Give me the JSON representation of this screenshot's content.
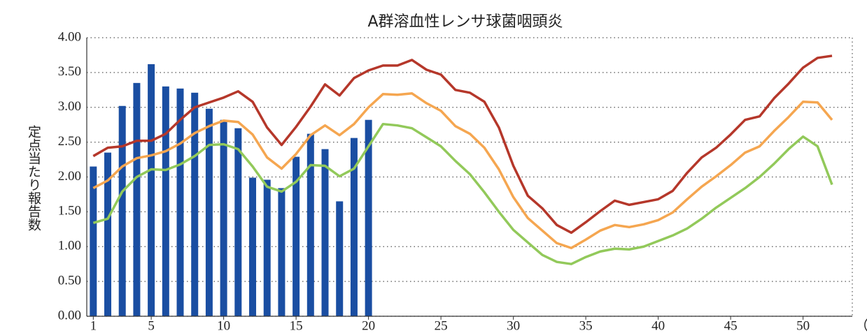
{
  "chart_data": {
    "type": "bar",
    "title": "A群溶血性レンサ球菌咽頭炎",
    "y_label": "定点当たり報告数",
    "x_label": "（週）",
    "x": [
      1,
      2,
      3,
      4,
      5,
      6,
      7,
      8,
      9,
      10,
      11,
      12,
      13,
      14,
      15,
      16,
      17,
      18,
      19,
      20,
      21,
      22,
      23,
      24,
      25,
      26,
      27,
      28,
      29,
      30,
      31,
      32,
      33,
      34,
      35,
      36,
      37,
      38,
      39,
      40,
      41,
      42,
      43,
      44,
      45,
      46,
      47,
      48,
      49,
      50,
      51,
      52
    ],
    "xlim": [
      0.55,
      53.4
    ],
    "xticks": [
      1,
      5,
      10,
      15,
      20,
      25,
      30,
      35,
      40,
      45,
      50
    ],
    "ylim": [
      0,
      4
    ],
    "yticks": [
      {
        "value": 0,
        "label": "0.00"
      },
      {
        "value": 0.5,
        "label": "0.50"
      },
      {
        "value": 1,
        "label": "1.00"
      },
      {
        "value": 1.5,
        "label": "1.50"
      },
      {
        "value": 2,
        "label": "2.00"
      },
      {
        "value": 2.5,
        "label": "2.50"
      },
      {
        "value": 3,
        "label": "3.00"
      },
      {
        "value": 3.5,
        "label": "3.50"
      },
      {
        "value": 4,
        "label": "4.00"
      }
    ],
    "grid": true,
    "series": [
      {
        "type": "bar",
        "color": "#1a4ea2",
        "values": [
          2.15,
          2.35,
          3.02,
          3.35,
          3.62,
          3.3,
          3.27,
          3.21,
          2.98,
          2.82,
          2.7,
          1.99,
          1.96,
          1.84,
          2.29,
          2.62,
          2.4,
          1.65,
          2.56,
          2.82,
          null,
          null,
          null,
          null,
          null,
          null,
          null,
          null,
          null,
          null,
          null,
          null,
          null,
          null,
          null,
          null,
          null,
          null,
          null,
          null,
          null,
          null,
          null,
          null,
          null,
          null,
          null,
          null,
          null,
          null,
          null,
          null
        ]
      },
      {
        "type": "line",
        "color": "#b5372a",
        "values": [
          2.3,
          2.42,
          2.44,
          2.52,
          2.52,
          2.62,
          2.82,
          3.0,
          3.07,
          3.14,
          3.23,
          3.08,
          2.71,
          2.46,
          2.72,
          3.01,
          3.33,
          3.17,
          3.42,
          3.53,
          3.6,
          3.6,
          3.68,
          3.54,
          3.47,
          3.25,
          3.21,
          3.08,
          2.71,
          2.16,
          1.73,
          1.55,
          1.31,
          1.2,
          1.35,
          1.51,
          1.66,
          1.6,
          1.64,
          1.68,
          1.8,
          2.06,
          2.28,
          2.42,
          2.61,
          2.82,
          2.87,
          3.13,
          3.34,
          3.57,
          3.71,
          3.74
        ]
      },
      {
        "type": "line",
        "color": "#f5a650",
        "values": [
          1.84,
          1.95,
          2.15,
          2.27,
          2.31,
          2.37,
          2.48,
          2.63,
          2.73,
          2.81,
          2.79,
          2.61,
          2.28,
          2.12,
          2.33,
          2.6,
          2.74,
          2.6,
          2.76,
          3.0,
          3.19,
          3.18,
          3.2,
          3.06,
          2.95,
          2.73,
          2.62,
          2.42,
          2.11,
          1.71,
          1.41,
          1.23,
          1.05,
          0.98,
          1.1,
          1.23,
          1.31,
          1.28,
          1.32,
          1.38,
          1.49,
          1.68,
          1.86,
          2.01,
          2.17,
          2.35,
          2.44,
          2.66,
          2.86,
          3.08,
          3.07,
          2.82
        ]
      },
      {
        "type": "line",
        "color": "#92c95a",
        "values": [
          1.34,
          1.4,
          1.79,
          2.0,
          2.11,
          2.1,
          2.18,
          2.3,
          2.46,
          2.47,
          2.4,
          2.15,
          1.86,
          1.79,
          1.93,
          2.17,
          2.16,
          2.01,
          2.12,
          2.44,
          2.76,
          2.74,
          2.7,
          2.57,
          2.44,
          2.23,
          2.04,
          1.78,
          1.5,
          1.24,
          1.06,
          0.88,
          0.78,
          0.75,
          0.85,
          0.93,
          0.97,
          0.96,
          1.0,
          1.08,
          1.16,
          1.26,
          1.4,
          1.56,
          1.7,
          1.84,
          2.0,
          2.19,
          2.4,
          2.58,
          2.44,
          1.89
        ]
      }
    ]
  }
}
